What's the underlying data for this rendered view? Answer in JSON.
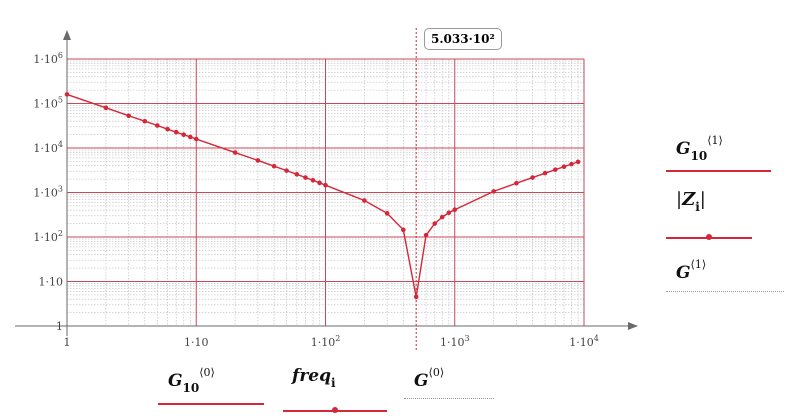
{
  "chart_data": {
    "type": "line",
    "xscale": "log",
    "yscale": "log",
    "xlim": [
      1,
      10000
    ],
    "ylim": [
      1,
      1000000
    ],
    "grid": true,
    "x_tick_labels": [
      "1",
      "1·10",
      "1·10²",
      "1·10³",
      "1·10⁴"
    ],
    "y_tick_labels": [
      "1",
      "1·10",
      "1·10²",
      "1·10³",
      "1·10⁴",
      "1·10⁵",
      "1·10⁶"
    ],
    "x_marker": {
      "value": 503.3,
      "label": "5.033·10²"
    },
    "series": [
      {
        "name": "|Z_i|",
        "color": "#d4283a",
        "x": [
          1,
          2,
          3,
          4,
          5,
          6,
          7,
          8,
          9,
          10,
          20,
          30,
          40,
          50,
          60,
          70,
          80,
          90,
          100,
          200,
          300,
          400,
          503,
          600,
          700,
          800,
          900,
          1000,
          2000,
          3000,
          4000,
          5000,
          6000,
          7000,
          8000,
          9000
        ],
        "y": [
          160000,
          80000,
          53000,
          40000,
          32000,
          26500,
          22700,
          19900,
          17700,
          15900,
          7900,
          5250,
          3900,
          3100,
          2560,
          2170,
          1880,
          1650,
          1460,
          660,
          340,
          145,
          4.5,
          110,
          200,
          280,
          350,
          410,
          1060,
          1620,
          2170,
          2720,
          3260,
          3800,
          4340,
          4880
        ]
      }
    ]
  },
  "legend": {
    "top_right": [
      {
        "base": "G",
        "sub": "10",
        "sup": "⟨1⟩",
        "line_color": "#d4283a",
        "style": "solid"
      },
      {
        "base": "Z",
        "sub": "i",
        "abs": true,
        "line_color": "#d4283a",
        "style": "markers"
      },
      {
        "base": "G",
        "sub": "",
        "sup": "⟨1⟩",
        "line_color": "#999999",
        "style": "dotted"
      }
    ],
    "bottom": [
      {
        "base": "G",
        "sub": "10",
        "sup": "⟨0⟩",
        "line_color": "#d4283a",
        "style": "solid"
      },
      {
        "base": "freq",
        "sub": "i",
        "line_color": "#d4283a",
        "style": "markers"
      },
      {
        "base": "G",
        "sub": "",
        "sup": "⟨0⟩",
        "line_color": "#999999",
        "style": "dotted"
      }
    ]
  }
}
